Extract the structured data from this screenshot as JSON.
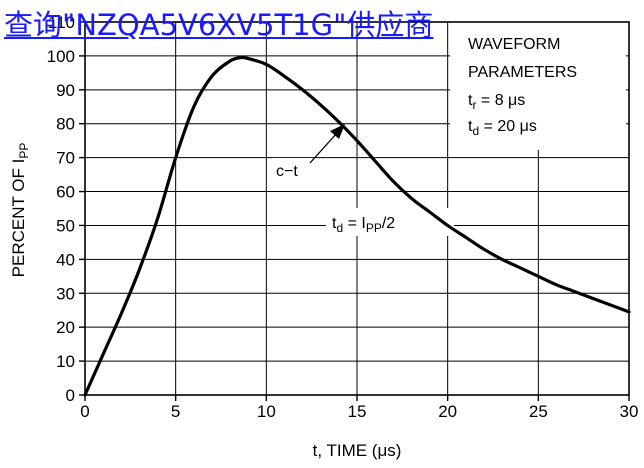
{
  "overlay_link": {
    "text": "查询\"NZQA5V6XV5T1G\"供应商",
    "color": "#1a1aff"
  },
  "chart_data": {
    "type": "line",
    "xlabel": "t, TIME (μs)",
    "ylabel": {
      "main": "PERCENT OF I",
      "sub": "PP"
    },
    "xlim": [
      0,
      30
    ],
    "ylim": [
      0,
      110
    ],
    "xticks": [
      0,
      5,
      10,
      15,
      20,
      25,
      30
    ],
    "yticks": [
      0,
      10,
      20,
      30,
      40,
      50,
      60,
      70,
      80,
      90,
      100,
      110
    ],
    "grid": true,
    "series": [
      {
        "name": "c-t",
        "color": "#000000",
        "x": [
          0,
          1,
          2,
          3,
          4,
          5,
          6,
          7,
          8,
          8.6,
          9,
          10,
          11,
          12,
          13,
          14,
          15,
          16,
          17,
          18,
          19,
          20,
          21,
          22,
          23,
          24,
          25,
          26,
          27,
          28,
          29,
          30
        ],
        "y": [
          0,
          12,
          24,
          37,
          52,
          70,
          85,
          94,
          98.5,
          99.5,
          99.2,
          97.5,
          94,
          90,
          85.5,
          80.5,
          75,
          69,
          63,
          58,
          54,
          50,
          46.5,
          43,
          40,
          37.5,
          35,
          32.5,
          30.5,
          28.5,
          26.5,
          24.5
        ]
      }
    ],
    "legend_box": {
      "title_line1": "WAVEFORM",
      "title_line2": "PARAMETERS",
      "tr": {
        "sym": "t",
        "sub": "r",
        "val": " = 8 μs"
      },
      "td": {
        "sym": "t",
        "sub": "d",
        "val": " = 20 μs"
      }
    },
    "annotations": {
      "curve_label": "c−t",
      "half_point": {
        "sym": "t",
        "sub": "d",
        "eq": " = I",
        "isub": "PP",
        "tail": "/2"
      }
    }
  }
}
